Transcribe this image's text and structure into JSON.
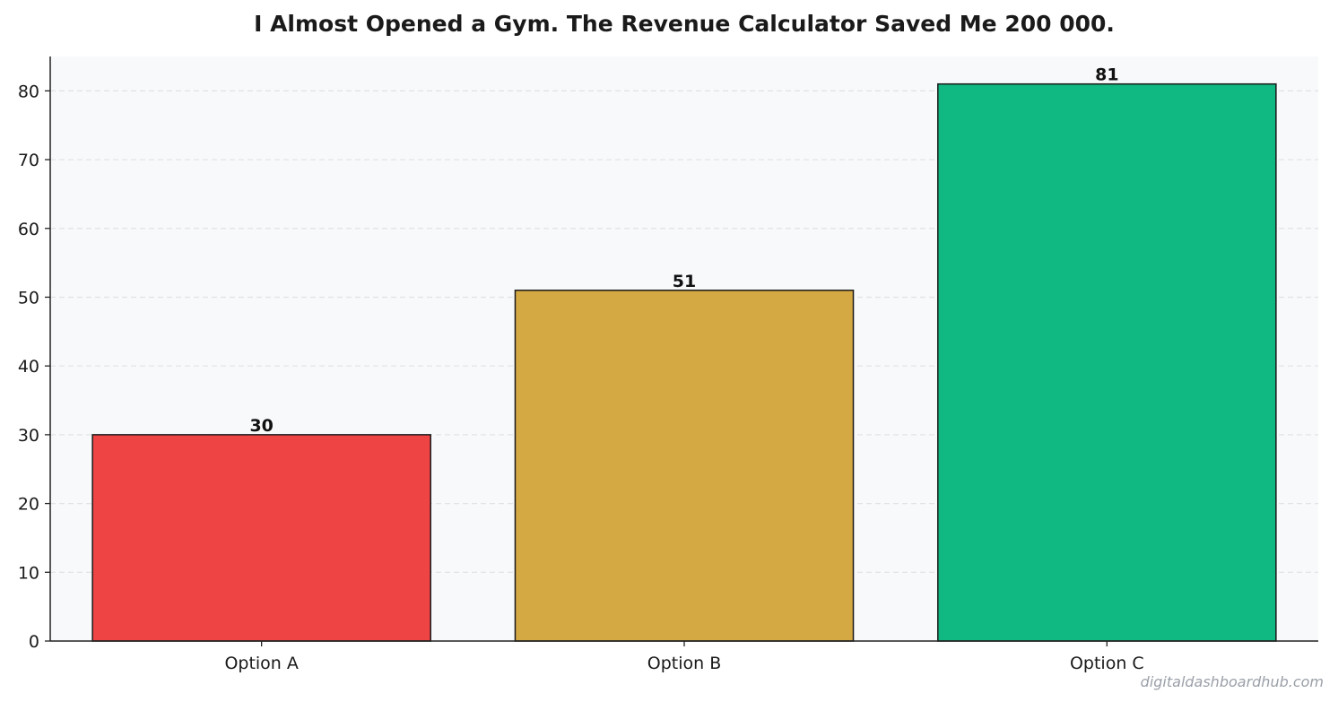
{
  "chart_data": {
    "type": "bar",
    "title": "I Almost Opened a Gym. The Revenue Calculator Saved Me  200 000.",
    "categories": [
      "Option A",
      "Option B",
      "Option C"
    ],
    "values": [
      30,
      51,
      81
    ],
    "data_labels": [
      "30",
      "51",
      "81"
    ],
    "colors": [
      "#ef4444",
      "#d4a843",
      "#10b981"
    ],
    "xlabel": "",
    "ylabel": "",
    "ylim": [
      0,
      85
    ],
    "yticks": [
      0,
      10,
      20,
      30,
      40,
      50,
      60,
      70,
      80
    ],
    "grid": "y-dashed",
    "legend": "none",
    "plot_background": "#f8f9fb"
  },
  "watermark": "digitaldashboardhub.com"
}
